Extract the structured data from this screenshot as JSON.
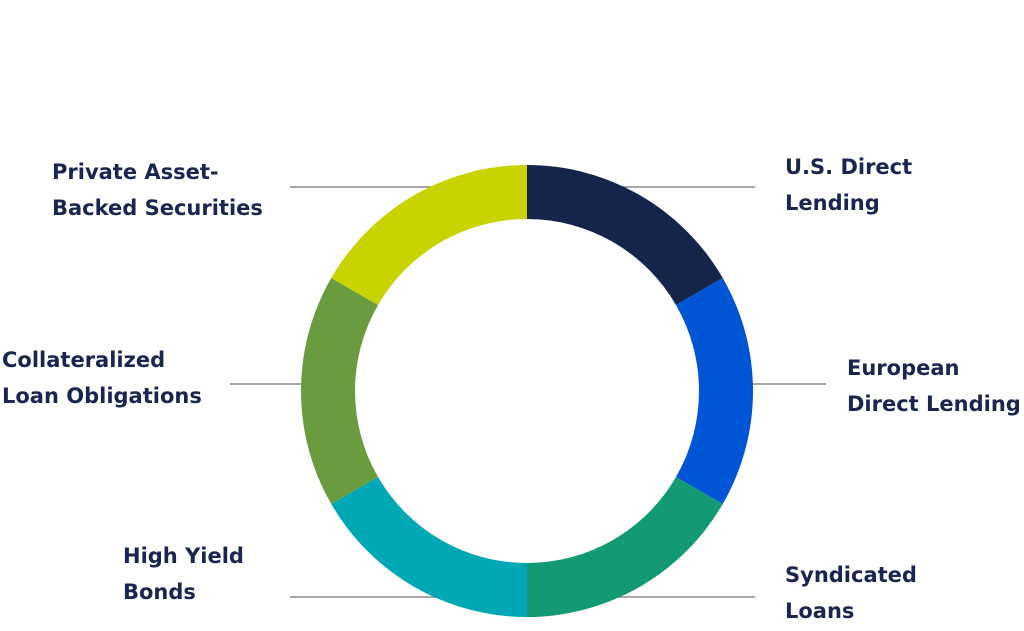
{
  "chart_data": {
    "type": "donut",
    "categories": [
      [
        "U.S. Direct",
        "Lending"
      ],
      [
        "European",
        "Direct Lending"
      ],
      [
        "Syndicated",
        "Loans"
      ],
      [
        "High Yield",
        "Bonds"
      ],
      [
        "Collateralized",
        "Loan Obligations"
      ],
      [
        "Private Asset-",
        "Backed Securities"
      ]
    ],
    "values": [
      1,
      1,
      1,
      1,
      1,
      1
    ],
    "colors": [
      "#14244b",
      "#0055d4",
      "#139a74",
      "#00a8b5",
      "#6a9b3e",
      "#c8d400"
    ]
  }
}
